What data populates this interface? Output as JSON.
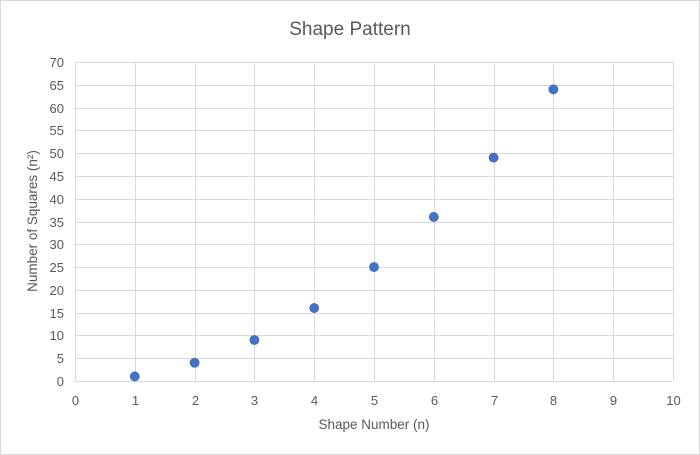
{
  "chart_data": {
    "type": "scatter",
    "title": "Shape Pattern",
    "xlabel": "Shape Number (n)",
    "ylabel": "Number of Squares (n²)",
    "xlim": [
      0,
      10
    ],
    "ylim": [
      0,
      70
    ],
    "x_ticks": [
      "0",
      "1",
      "2",
      "3",
      "4",
      "5",
      "6",
      "7",
      "8",
      "9",
      "10"
    ],
    "y_ticks": [
      "0",
      "5",
      "10",
      "15",
      "20",
      "25",
      "30",
      "35",
      "40",
      "45",
      "50",
      "55",
      "60",
      "65",
      "70"
    ],
    "grid": true,
    "legend": "none",
    "marker_color": "#4472c4",
    "points": [
      {
        "x": 1,
        "y": 1
      },
      {
        "x": 2,
        "y": 4
      },
      {
        "x": 3,
        "y": 9
      },
      {
        "x": 4,
        "y": 16
      },
      {
        "x": 5,
        "y": 25
      },
      {
        "x": 6,
        "y": 36
      },
      {
        "x": 7,
        "y": 49
      },
      {
        "x": 8,
        "y": 64
      }
    ]
  }
}
